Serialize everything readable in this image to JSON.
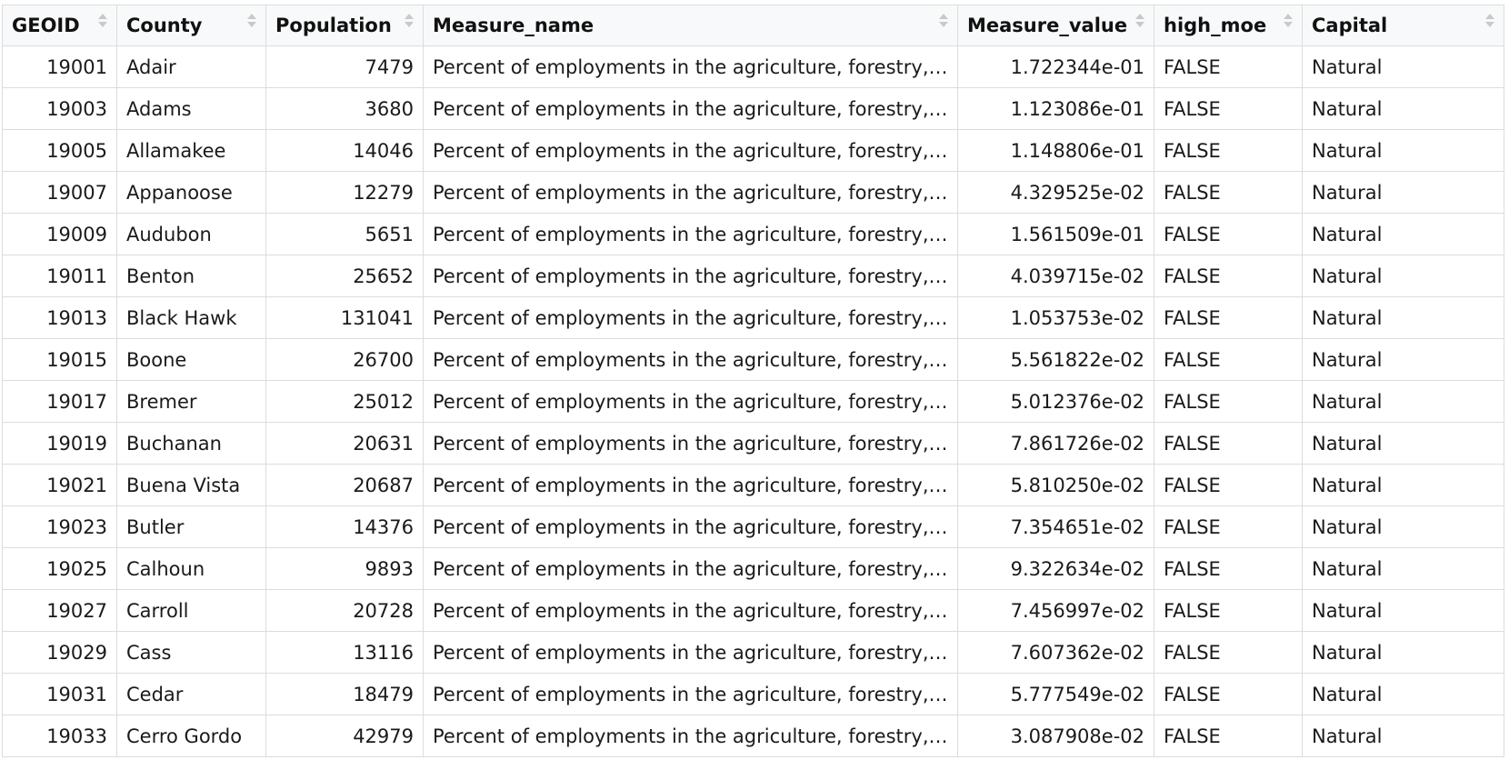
{
  "columns": [
    {
      "key": "geoid",
      "label": "GEOID",
      "numeric": true
    },
    {
      "key": "county",
      "label": "County",
      "numeric": false
    },
    {
      "key": "population",
      "label": "Population",
      "numeric": true
    },
    {
      "key": "measure_name",
      "label": "Measure_name",
      "numeric": false
    },
    {
      "key": "measure_value",
      "label": "Measure_value",
      "numeric": true
    },
    {
      "key": "high_moe",
      "label": "high_moe",
      "numeric": false
    },
    {
      "key": "capital",
      "label": "Capital",
      "numeric": false
    }
  ],
  "rows": [
    {
      "geoid": "19001",
      "county": "Adair",
      "population": "7479",
      "measure_name": "Percent of employments in the agriculture, forestry, fi…",
      "measure_value": "1.722344e-01",
      "high_moe": "FALSE",
      "capital": "Natural"
    },
    {
      "geoid": "19003",
      "county": "Adams",
      "population": "3680",
      "measure_name": "Percent of employments in the agriculture, forestry, fi…",
      "measure_value": "1.123086e-01",
      "high_moe": "FALSE",
      "capital": "Natural"
    },
    {
      "geoid": "19005",
      "county": "Allamakee",
      "population": "14046",
      "measure_name": "Percent of employments in the agriculture, forestry, fi…",
      "measure_value": "1.148806e-01",
      "high_moe": "FALSE",
      "capital": "Natural"
    },
    {
      "geoid": "19007",
      "county": "Appanoose",
      "population": "12279",
      "measure_name": "Percent of employments in the agriculture, forestry, fi…",
      "measure_value": "4.329525e-02",
      "high_moe": "FALSE",
      "capital": "Natural"
    },
    {
      "geoid": "19009",
      "county": "Audubon",
      "population": "5651",
      "measure_name": "Percent of employments in the agriculture, forestry, fi…",
      "measure_value": "1.561509e-01",
      "high_moe": "FALSE",
      "capital": "Natural"
    },
    {
      "geoid": "19011",
      "county": "Benton",
      "population": "25652",
      "measure_name": "Percent of employments in the agriculture, forestry, fi…",
      "measure_value": "4.039715e-02",
      "high_moe": "FALSE",
      "capital": "Natural"
    },
    {
      "geoid": "19013",
      "county": "Black Hawk",
      "population": "131041",
      "measure_name": "Percent of employments in the agriculture, forestry, fi…",
      "measure_value": "1.053753e-02",
      "high_moe": "FALSE",
      "capital": "Natural"
    },
    {
      "geoid": "19015",
      "county": "Boone",
      "population": "26700",
      "measure_name": "Percent of employments in the agriculture, forestry, fi…",
      "measure_value": "5.561822e-02",
      "high_moe": "FALSE",
      "capital": "Natural"
    },
    {
      "geoid": "19017",
      "county": "Bremer",
      "population": "25012",
      "measure_name": "Percent of employments in the agriculture, forestry, fi…",
      "measure_value": "5.012376e-02",
      "high_moe": "FALSE",
      "capital": "Natural"
    },
    {
      "geoid": "19019",
      "county": "Buchanan",
      "population": "20631",
      "measure_name": "Percent of employments in the agriculture, forestry, fi…",
      "measure_value": "7.861726e-02",
      "high_moe": "FALSE",
      "capital": "Natural"
    },
    {
      "geoid": "19021",
      "county": "Buena Vista",
      "population": "20687",
      "measure_name": "Percent of employments in the agriculture, forestry, fi…",
      "measure_value": "5.810250e-02",
      "high_moe": "FALSE",
      "capital": "Natural"
    },
    {
      "geoid": "19023",
      "county": "Butler",
      "population": "14376",
      "measure_name": "Percent of employments in the agriculture, forestry, fi…",
      "measure_value": "7.354651e-02",
      "high_moe": "FALSE",
      "capital": "Natural"
    },
    {
      "geoid": "19025",
      "county": "Calhoun",
      "population": "9893",
      "measure_name": "Percent of employments in the agriculture, forestry, fi…",
      "measure_value": "9.322634e-02",
      "high_moe": "FALSE",
      "capital": "Natural"
    },
    {
      "geoid": "19027",
      "county": "Carroll",
      "population": "20728",
      "measure_name": "Percent of employments in the agriculture, forestry, fi…",
      "measure_value": "7.456997e-02",
      "high_moe": "FALSE",
      "capital": "Natural"
    },
    {
      "geoid": "19029",
      "county": "Cass",
      "population": "13116",
      "measure_name": "Percent of employments in the agriculture, forestry, fi…",
      "measure_value": "7.607362e-02",
      "high_moe": "FALSE",
      "capital": "Natural"
    },
    {
      "geoid": "19031",
      "county": "Cedar",
      "population": "18479",
      "measure_name": "Percent of employments in the agriculture, forestry, fi…",
      "measure_value": "5.777549e-02",
      "high_moe": "FALSE",
      "capital": "Natural"
    },
    {
      "geoid": "19033",
      "county": "Cerro Gordo",
      "population": "42979",
      "measure_name": "Percent of employments in the agriculture, forestry, fi…",
      "measure_value": "3.087908e-02",
      "high_moe": "FALSE",
      "capital": "Natural"
    }
  ]
}
